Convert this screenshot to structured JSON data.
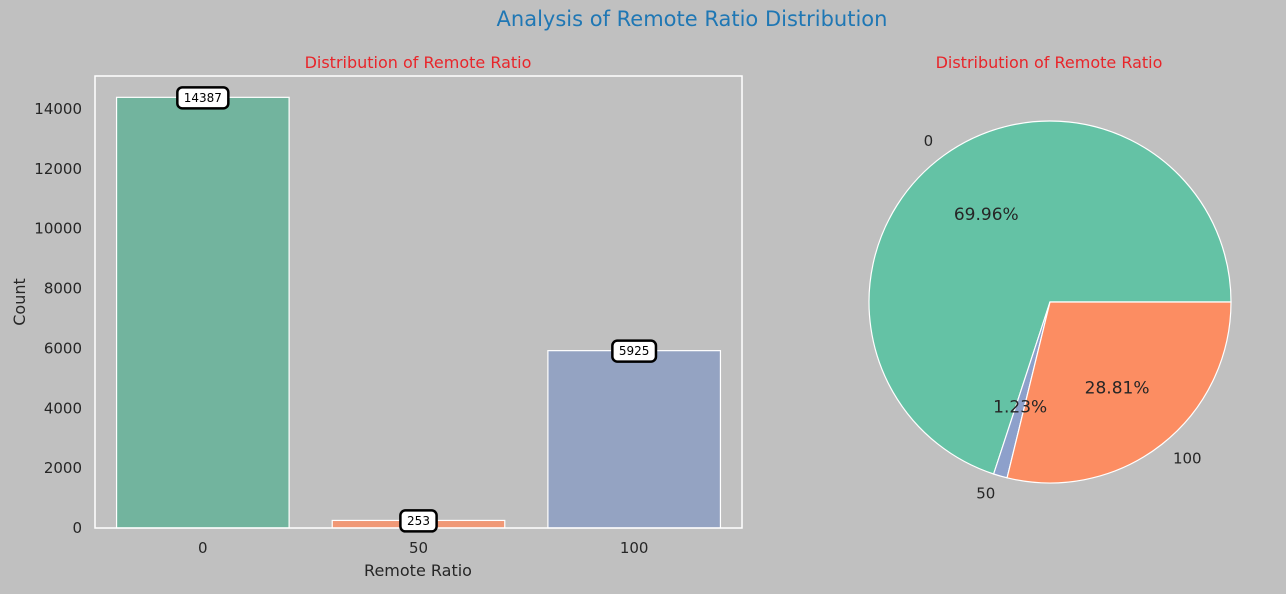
{
  "figure": {
    "suptitle": "Analysis of Remote Ratio Distribution",
    "suptitle_color": "#1f77b4",
    "background": "#c0c0c0"
  },
  "chart_data": [
    {
      "type": "bar",
      "title": "Distribution of Remote Ratio",
      "title_color": "#e8252a",
      "xlabel": "Remote Ratio",
      "ylabel": "Count",
      "categories": [
        "0",
        "50",
        "100"
      ],
      "values": [
        14387,
        253,
        5925
      ],
      "colors": [
        "#72b49e",
        "#f09876",
        "#94a3c2"
      ],
      "ylim": [
        0,
        15100
      ],
      "yticks": [
        0,
        2000,
        4000,
        6000,
        8000,
        10000,
        12000,
        14000
      ],
      "data_labels": [
        "14387",
        "253",
        "5925"
      ],
      "grid": false
    },
    {
      "type": "pie",
      "title": "Distribution of Remote Ratio",
      "title_color": "#e8252a",
      "labels": [
        "0",
        "50",
        "100"
      ],
      "values": [
        69.96,
        1.23,
        28.81
      ],
      "pct_labels": [
        "69.96%",
        "1.23%",
        "28.81%"
      ],
      "colors": [
        "#64c2a5",
        "#8da0cb",
        "#fc8d62"
      ]
    }
  ]
}
